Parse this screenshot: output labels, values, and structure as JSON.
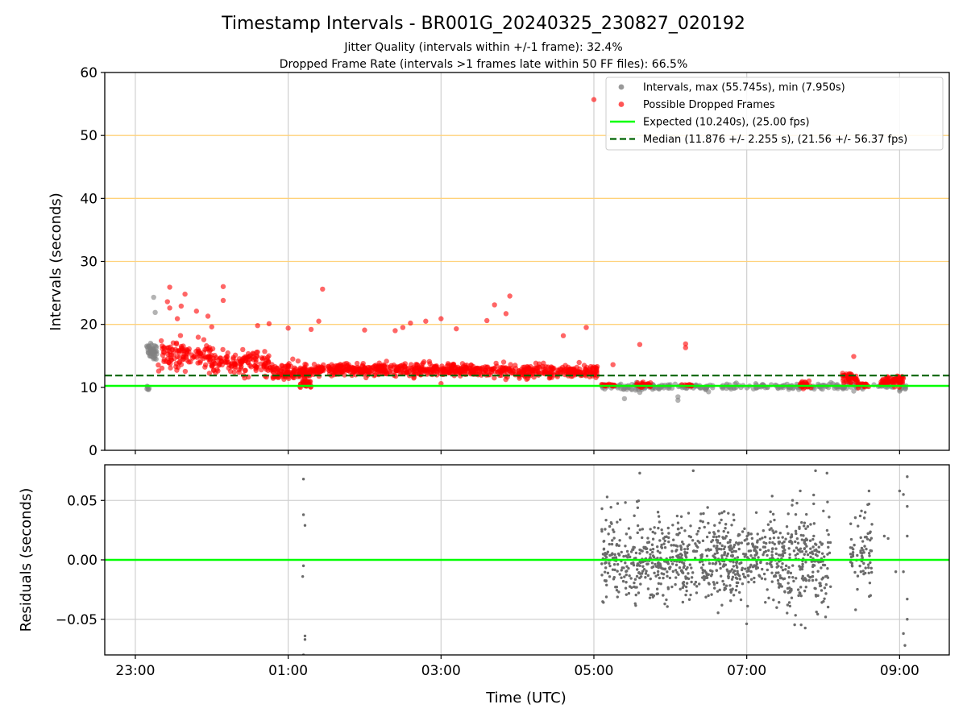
{
  "figure": {
    "title": "Timestamp Intervals - BR001G_20240325_230827_020192",
    "subtitle1": "Jitter Quality (intervals within +/-1 frame): 32.4%",
    "subtitle2": "Dropped Frame Rate (intervals >1 frames late within 50 FF files): 66.5%"
  },
  "chart_data": [
    {
      "type": "scatter",
      "ylabel": "Intervals (seconds)",
      "ylim": [
        0,
        60
      ],
      "yticks": [
        0,
        10,
        20,
        30,
        40,
        50,
        60
      ],
      "xlim_hours": [
        22.6,
        33.65
      ],
      "xticks": [
        {
          "hour": 23,
          "label": "23:00"
        },
        {
          "hour": 25,
          "label": "01:00"
        },
        {
          "hour": 27,
          "label": "03:00"
        },
        {
          "hour": 29,
          "label": "05:00"
        },
        {
          "hour": 31,
          "label": "07:00"
        },
        {
          "hour": 33,
          "label": "09:00"
        }
      ],
      "grid": {
        "vertical": true,
        "horizontal_lines": [
          20,
          30,
          40,
          50
        ],
        "horizontal_color": "#ffd27a"
      },
      "legend_position": "top-right",
      "colors": {
        "intervals": "#808080",
        "dropped": "#ff0000",
        "expected": "#00ff00",
        "median": "#006400"
      },
      "expected_interval": 10.24,
      "median_interval": 11.876,
      "legend": [
        {
          "label": "Intervals, max (55.745s), min (7.950s)",
          "kind": "dot",
          "color": "#999999"
        },
        {
          "label": "Possible Dropped Frames",
          "kind": "dot",
          "color": "#ff5555"
        },
        {
          "label": "Expected (10.240s), (25.00 fps)",
          "kind": "line",
          "color": "#00ff00"
        },
        {
          "label": "Median (11.876 +/- 2.255 s), (21.56 +/- 56.37 fps)",
          "kind": "dash",
          "color": "#006400"
        }
      ],
      "intervals_segments": [
        {
          "t0": 23.15,
          "t1": 23.28,
          "center": 15.8,
          "spread": 1.2,
          "n": 40
        },
        {
          "t0": 23.15,
          "t1": 23.18,
          "center": 9.8,
          "spread": 0.4,
          "n": 6
        },
        {
          "t0": 29.05,
          "t1": 33.1,
          "center": 10.1,
          "spread": 0.45,
          "n": 260
        }
      ],
      "intervals_outliers": [
        [
          23.24,
          24.3
        ],
        [
          23.26,
          21.9
        ],
        [
          23.2,
          17.0
        ],
        [
          29.4,
          8.2
        ],
        [
          30.1,
          7.95
        ],
        [
          30.1,
          8.5
        ],
        [
          29.6,
          9.2
        ],
        [
          30.5,
          9.3
        ],
        [
          32.4,
          9.4
        ],
        [
          33.0,
          9.4
        ]
      ],
      "dropped_segments": [
        {
          "t0": 23.3,
          "t1": 24.0,
          "center": 15.0,
          "spread": 1.8,
          "n": 120
        },
        {
          "t0": 24.0,
          "t1": 24.8,
          "center": 14.0,
          "spread": 1.6,
          "n": 140
        },
        {
          "t0": 24.8,
          "t1": 25.3,
          "center": 12.3,
          "spread": 1.1,
          "n": 120
        },
        {
          "t0": 25.15,
          "t1": 25.3,
          "center": 10.6,
          "spread": 0.5,
          "n": 25
        },
        {
          "t0": 25.3,
          "t1": 28.0,
          "center": 12.8,
          "spread": 0.9,
          "n": 520
        },
        {
          "t0": 28.0,
          "t1": 29.05,
          "center": 12.6,
          "spread": 1.0,
          "n": 200
        },
        {
          "t0": 29.1,
          "t1": 29.3,
          "center": 10.3,
          "spread": 0.2,
          "n": 20
        },
        {
          "t0": 29.55,
          "t1": 29.75,
          "center": 10.4,
          "spread": 0.4,
          "n": 25
        },
        {
          "t0": 30.15,
          "t1": 30.3,
          "center": 10.3,
          "spread": 0.2,
          "n": 12
        },
        {
          "t0": 31.7,
          "t1": 31.85,
          "center": 10.5,
          "spread": 0.5,
          "n": 25
        },
        {
          "t0": 32.25,
          "t1": 32.45,
          "center": 11.5,
          "spread": 0.7,
          "n": 45
        },
        {
          "t0": 32.45,
          "t1": 32.6,
          "center": 10.4,
          "spread": 0.3,
          "n": 20
        },
        {
          "t0": 32.75,
          "t1": 33.05,
          "center": 11.0,
          "spread": 0.7,
          "n": 60
        }
      ],
      "dropped_outliers": [
        [
          23.45,
          25.9
        ],
        [
          23.65,
          24.8
        ],
        [
          23.6,
          22.9
        ],
        [
          23.8,
          22.1
        ],
        [
          23.42,
          23.6
        ],
        [
          23.45,
          22.6
        ],
        [
          23.55,
          20.9
        ],
        [
          23.95,
          21.3
        ],
        [
          24.15,
          26.0
        ],
        [
          24.15,
          23.8
        ],
        [
          24.0,
          19.6
        ],
        [
          24.6,
          19.8
        ],
        [
          24.75,
          20.1
        ],
        [
          25.0,
          19.4
        ],
        [
          25.3,
          19.2
        ],
        [
          25.45,
          25.6
        ],
        [
          25.4,
          20.5
        ],
        [
          26.0,
          19.1
        ],
        [
          26.4,
          19.0
        ],
        [
          26.6,
          20.2
        ],
        [
          26.5,
          19.5
        ],
        [
          26.8,
          20.5
        ],
        [
          27.0,
          20.9
        ],
        [
          27.2,
          19.3
        ],
        [
          27.6,
          20.6
        ],
        [
          27.7,
          23.1
        ],
        [
          27.85,
          21.7
        ],
        [
          27.9,
          24.5
        ],
        [
          28.6,
          18.2
        ],
        [
          28.9,
          19.5
        ],
        [
          29.0,
          55.7
        ],
        [
          29.6,
          16.8
        ],
        [
          30.2,
          16.9
        ],
        [
          30.2,
          16.3
        ],
        [
          29.25,
          13.6
        ],
        [
          32.4,
          14.9
        ],
        [
          27.0,
          10.6
        ]
      ],
      "cluster_counts": {
        "note_free": 0
      }
    },
    {
      "type": "scatter",
      "ylabel": "Residuals (seconds)",
      "ylim": [
        -0.08,
        0.08
      ],
      "yticks": [
        {
          "value": 0.05,
          "label": "0.05"
        },
        {
          "value": 0.0,
          "label": "0.00"
        },
        {
          "value": -0.05,
          "label": "−0.05"
        }
      ],
      "xlabel": "Time (UTC)",
      "grid": true,
      "zero_line_color": "#00ff00",
      "point_color": "#6b6b6b",
      "residual_segments": [
        {
          "t0": 29.1,
          "t1": 29.6,
          "sd": 0.02,
          "n": 150
        },
        {
          "t0": 29.6,
          "t1": 30.6,
          "sd": 0.017,
          "n": 330
        },
        {
          "t0": 30.6,
          "t1": 31.5,
          "sd": 0.017,
          "n": 330
        },
        {
          "t0": 31.5,
          "t1": 32.1,
          "sd": 0.02,
          "n": 200
        },
        {
          "t0": 32.35,
          "t1": 32.65,
          "sd": 0.02,
          "n": 70
        }
      ],
      "residual_points": [
        [
          25.2,
          0.068
        ],
        [
          25.2,
          0.038
        ],
        [
          25.22,
          0.029
        ],
        [
          25.2,
          -0.005
        ],
        [
          25.19,
          -0.014
        ],
        [
          25.22,
          -0.064
        ],
        [
          25.22,
          -0.067
        ],
        [
          25.2,
          -0.08
        ],
        [
          32.6,
          0.058
        ],
        [
          32.6,
          0.047
        ],
        [
          32.55,
          0.04
        ],
        [
          32.62,
          -0.03
        ],
        [
          32.8,
          0.02
        ],
        [
          32.85,
          0.018
        ],
        [
          33.0,
          0.058
        ],
        [
          33.05,
          0.055
        ],
        [
          33.1,
          0.07
        ],
        [
          33.1,
          0.045
        ],
        [
          33.1,
          0.02
        ],
        [
          33.05,
          -0.01
        ],
        [
          33.1,
          -0.033
        ],
        [
          33.1,
          -0.05
        ],
        [
          33.05,
          -0.062
        ],
        [
          33.07,
          -0.072
        ],
        [
          32.95,
          -0.01
        ],
        [
          30.3,
          0.075
        ],
        [
          29.6,
          0.073
        ],
        [
          32.05,
          0.073
        ],
        [
          31.9,
          0.075
        ]
      ]
    }
  ]
}
